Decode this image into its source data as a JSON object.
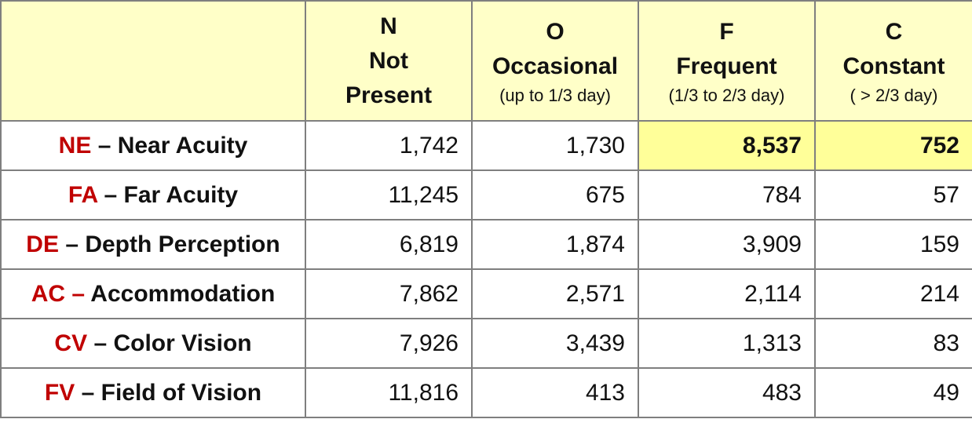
{
  "table": {
    "columns": [
      {
        "code": "N",
        "name": "Not Present"
      },
      {
        "code": "O",
        "name": "Occasional",
        "note": "(up to 1/3 day)"
      },
      {
        "code": "F",
        "name": "Frequent",
        "note": "(1/3 to 2/3 day)"
      },
      {
        "code": "C",
        "name": "Constant",
        "note": "( > 2/3 day)"
      }
    ],
    "rows": [
      {
        "code": "NE",
        "label": "– Near Acuity",
        "values": [
          "1,742",
          "1,730",
          "8,537",
          "752"
        ],
        "highlight": [
          2,
          3
        ]
      },
      {
        "code": "FA",
        "label": "– Far Acuity",
        "values": [
          "11,245",
          "675",
          "784",
          "57"
        ]
      },
      {
        "code": "DE",
        "label": "– Depth Perception",
        "values": [
          "6,819",
          "1,874",
          "3,909",
          "159"
        ]
      },
      {
        "code": "AC –",
        "label": "Accommodation",
        "values": [
          "7,862",
          "2,571",
          "2,114",
          "214"
        ]
      },
      {
        "code": "CV",
        "label": "– Color Vision",
        "values": [
          "7,926",
          "3,439",
          "1,313",
          "83"
        ]
      },
      {
        "code": "FV",
        "label": "– Field of Vision",
        "values": [
          "11,816",
          "413",
          "483",
          "49"
        ]
      }
    ]
  }
}
